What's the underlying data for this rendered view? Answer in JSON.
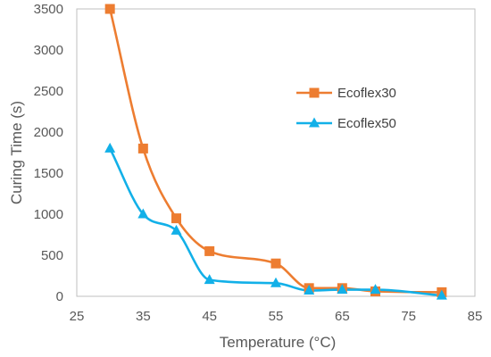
{
  "chart_data": {
    "type": "scatter",
    "title": "",
    "xlabel": "Temperature (°C)",
    "ylabel": "Curing Time (s)",
    "xlim": [
      25,
      85
    ],
    "ylim": [
      0,
      3500
    ],
    "x_ticks": [
      "25",
      "35",
      "45",
      "55",
      "65",
      "75",
      "85"
    ],
    "y_ticks": [
      "0",
      "500",
      "1000",
      "1500",
      "2000",
      "2500",
      "3000",
      "3500"
    ],
    "grid": false,
    "legend_position": "right",
    "smoothed_lines": true,
    "series": [
      {
        "name": "Ecoflex30",
        "marker": "square",
        "color": "#ED7D31",
        "x": [
          30,
          35,
          40,
          45,
          55,
          60,
          65,
          70,
          80
        ],
        "y": [
          3500,
          1800,
          950,
          550,
          400,
          100,
          100,
          60,
          50
        ]
      },
      {
        "name": "Ecoflex50",
        "marker": "triangle",
        "color": "#12B0E8",
        "x": [
          30,
          35,
          40,
          45,
          55,
          60,
          65,
          70,
          80
        ],
        "y": [
          1800,
          1000,
          800,
          200,
          160,
          70,
          80,
          80,
          10
        ]
      }
    ]
  }
}
